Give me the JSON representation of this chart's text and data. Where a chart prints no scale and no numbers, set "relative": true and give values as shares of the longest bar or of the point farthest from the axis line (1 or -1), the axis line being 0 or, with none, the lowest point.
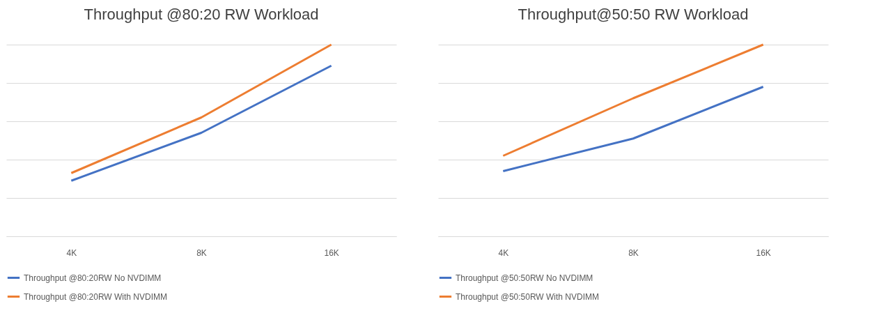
{
  "chart_data": [
    {
      "type": "line",
      "title": "Throughput @80:20 RW Workload",
      "categories": [
        "4K",
        "8K",
        "16K"
      ],
      "relative": true,
      "grid": "y",
      "legend": "bottom",
      "series": [
        {
          "name": "Throughput @80:20RW No NVDIMM",
          "color": "#4472c4",
          "values": [
            0.29,
            0.54,
            0.89
          ]
        },
        {
          "name": "Throughput @80:20RW With NVDIMM",
          "color": "#ed7d31",
          "values": [
            0.33,
            0.62,
            1
          ]
        }
      ]
    },
    {
      "type": "line",
      "title": "Throughput@50:50 RW Workload",
      "categories": [
        "4K",
        "8K",
        "16K"
      ],
      "relative": true,
      "grid": "y",
      "legend": "bottom",
      "series": [
        {
          "name": "Throughput @50:50RW No NVDIMM",
          "color": "#4472c4",
          "values": [
            0.34,
            0.51,
            0.78
          ]
        },
        {
          "name": "Throughput @50:50RW With NVDIMM",
          "color": "#ed7d31",
          "values": [
            0.42,
            0.72,
            1
          ]
        }
      ]
    }
  ]
}
